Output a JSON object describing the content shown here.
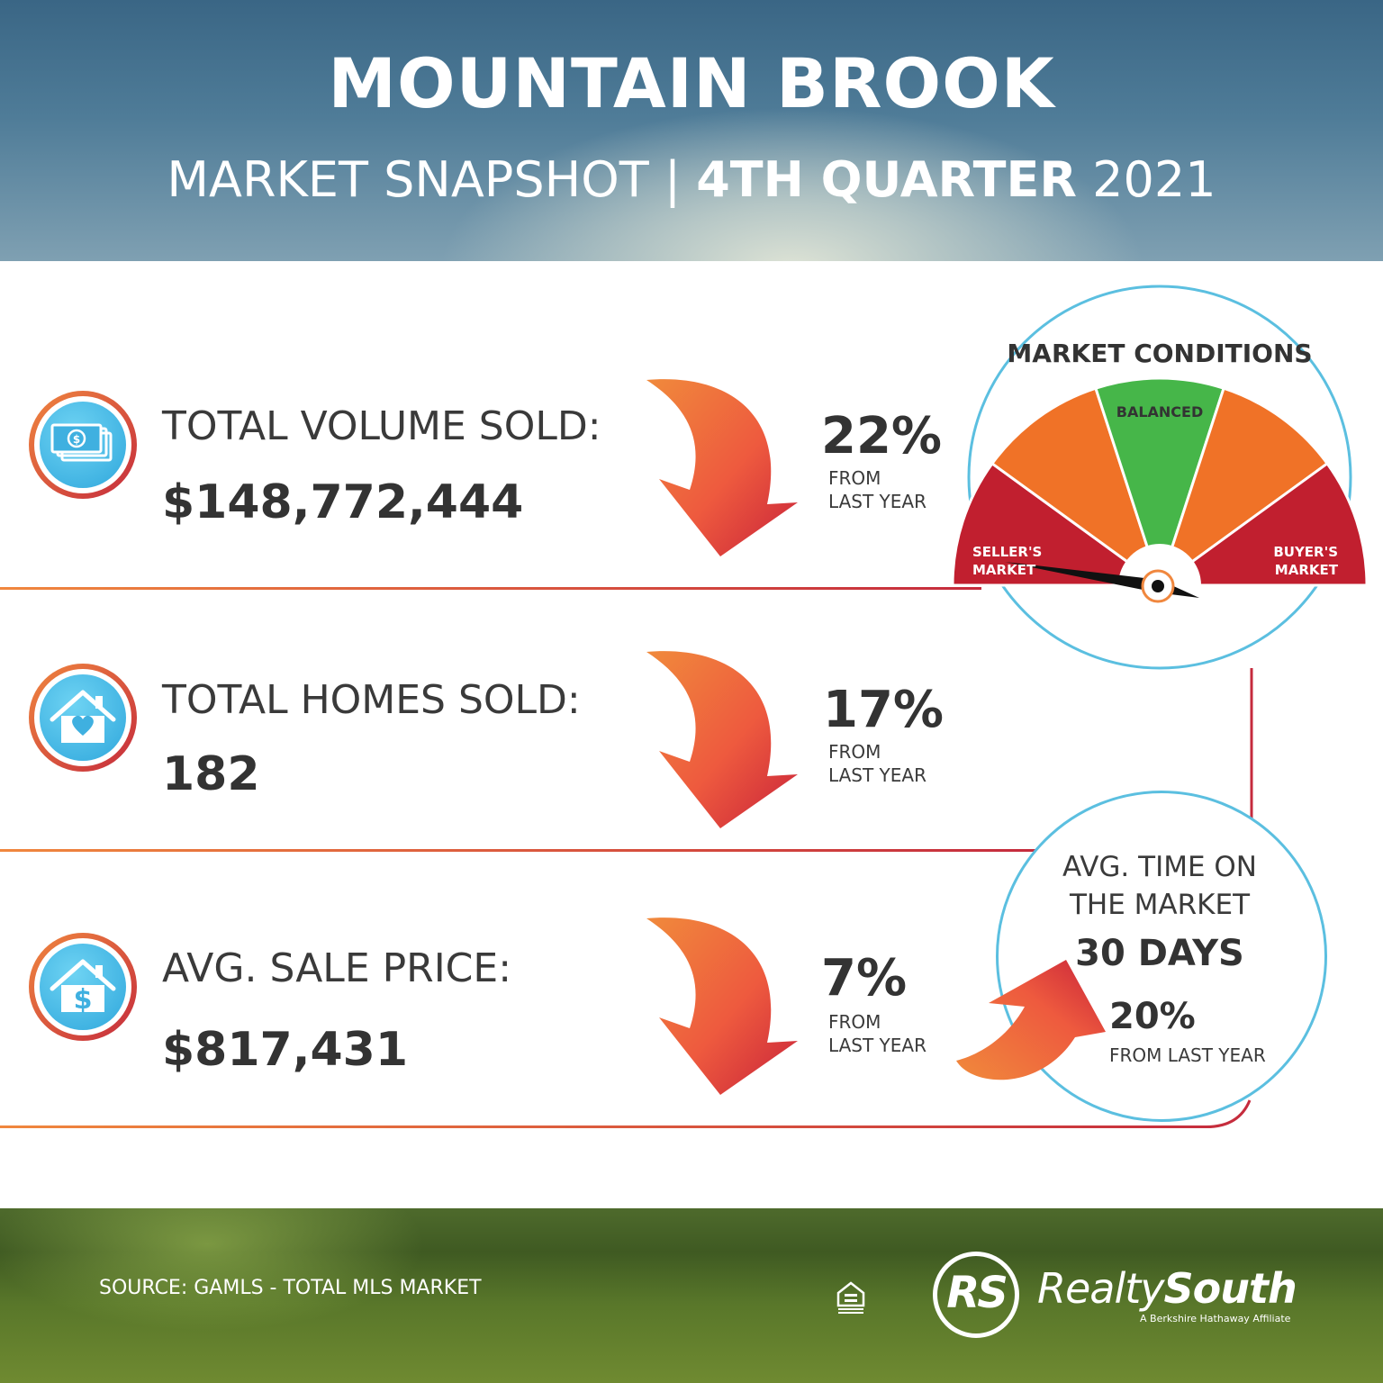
{
  "header": {
    "title": "MOUNTAIN BROOK",
    "subtitle_light": "MARKET SNAPSHOT | ",
    "subtitle_bold": "4TH QUARTER",
    "subtitle_year": " 2021"
  },
  "stats": [
    {
      "icon": "money-icon",
      "label": "TOTAL VOLUME SOLD:",
      "value": "$148,772,444",
      "change": "22%",
      "direction": "down",
      "from_line1": "FROM",
      "from_line2": "LAST YEAR"
    },
    {
      "icon": "house-heart-icon",
      "label": "TOTAL HOMES SOLD:",
      "value": "182",
      "change": "17%",
      "direction": "down",
      "from_line1": "FROM",
      "from_line2": "LAST YEAR"
    },
    {
      "icon": "house-dollar-icon",
      "label": "AVG. SALE PRICE:",
      "value": "$817,431",
      "change": "7%",
      "direction": "down",
      "from_line1": "FROM",
      "from_line2": "LAST YEAR"
    }
  ],
  "market_conditions": {
    "title": "MARKET CONDITIONS",
    "balanced": "BALANCED",
    "seller_line1": "SELLER'S",
    "seller_line2": "MARKET",
    "buyer_line1": "BUYER'S",
    "buyer_line2": "MARKET",
    "indicator": "SELLER'S MARKET",
    "colors": {
      "red": "#c11f2f",
      "orange": "#f07227",
      "green": "#46b649"
    }
  },
  "time_on_market": {
    "line1": "AVG. TIME ON",
    "line2": "THE MARKET",
    "value": "30 DAYS",
    "change": "20%",
    "direction": "up",
    "from": "FROM LAST YEAR"
  },
  "footer": {
    "source": "SOURCE: GAMLS - TOTAL MLS MARKET",
    "logo_mark": "RS",
    "brand_light": "Realty",
    "brand_bold": "South",
    "tagline": "A Berkshire Hathaway Affiliate",
    "eho_icon": "equal-housing-icon"
  },
  "colors": {
    "accent_orange": "#f0873e",
    "accent_red": "#c52b3d",
    "accent_blue": "#5bbfe0"
  }
}
